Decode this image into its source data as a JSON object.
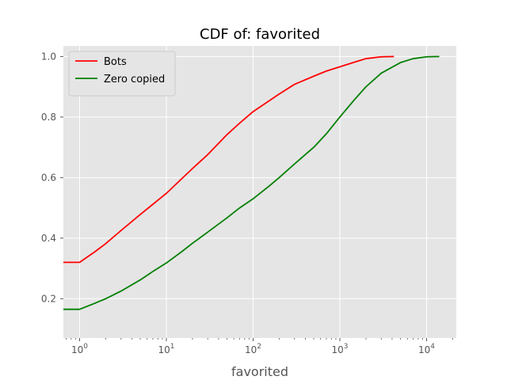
{
  "chart_data": {
    "type": "line",
    "title": "CDF of: favorited",
    "xlabel": "favorited",
    "ylabel": "",
    "xscale": "log",
    "xlim": [
      0.65,
      22000
    ],
    "ylim": [
      0.07,
      1.035
    ],
    "x_ticks": [
      {
        "base": "10",
        "exp": "0",
        "value": 1
      },
      {
        "base": "10",
        "exp": "1",
        "value": 10
      },
      {
        "base": "10",
        "exp": "2",
        "value": 100
      },
      {
        "base": "10",
        "exp": "3",
        "value": 1000
      },
      {
        "base": "10",
        "exp": "4",
        "value": 10000
      }
    ],
    "y_ticks": [
      {
        "label": "0.2",
        "value": 0.2
      },
      {
        "label": "0.4",
        "value": 0.4
      },
      {
        "label": "0.6",
        "value": 0.6
      },
      {
        "label": "0.8",
        "value": 0.8
      },
      {
        "label": "1.0",
        "value": 1.0
      }
    ],
    "grid": true,
    "legend_position": "top-left",
    "series": [
      {
        "name": "Bots",
        "color": "#ff0000",
        "points": [
          [
            0.65,
            0.32
          ],
          [
            1,
            0.32
          ],
          [
            1.5,
            0.355
          ],
          [
            2,
            0.382
          ],
          [
            3,
            0.425
          ],
          [
            5,
            0.478
          ],
          [
            7,
            0.512
          ],
          [
            10,
            0.548
          ],
          [
            15,
            0.596
          ],
          [
            20,
            0.63
          ],
          [
            30,
            0.676
          ],
          [
            50,
            0.742
          ],
          [
            70,
            0.78
          ],
          [
            100,
            0.818
          ],
          [
            150,
            0.852
          ],
          [
            200,
            0.876
          ],
          [
            300,
            0.908
          ],
          [
            500,
            0.935
          ],
          [
            700,
            0.952
          ],
          [
            1000,
            0.966
          ],
          [
            1500,
            0.982
          ],
          [
            2000,
            0.993
          ],
          [
            3000,
            0.999
          ],
          [
            4200,
            1.0
          ]
        ]
      },
      {
        "name": "Zero copied",
        "color": "#008000",
        "points": [
          [
            0.65,
            0.165
          ],
          [
            1,
            0.165
          ],
          [
            1.5,
            0.185
          ],
          [
            2,
            0.2
          ],
          [
            3,
            0.225
          ],
          [
            5,
            0.262
          ],
          [
            7,
            0.29
          ],
          [
            10,
            0.318
          ],
          [
            15,
            0.355
          ],
          [
            20,
            0.383
          ],
          [
            30,
            0.42
          ],
          [
            50,
            0.467
          ],
          [
            70,
            0.5
          ],
          [
            100,
            0.53
          ],
          [
            150,
            0.57
          ],
          [
            200,
            0.6
          ],
          [
            300,
            0.645
          ],
          [
            500,
            0.7
          ],
          [
            700,
            0.745
          ],
          [
            1000,
            0.8
          ],
          [
            1500,
            0.86
          ],
          [
            2000,
            0.9
          ],
          [
            3000,
            0.945
          ],
          [
            5000,
            0.98
          ],
          [
            7000,
            0.993
          ],
          [
            10000,
            0.999
          ],
          [
            14000,
            1.0
          ]
        ]
      }
    ]
  }
}
